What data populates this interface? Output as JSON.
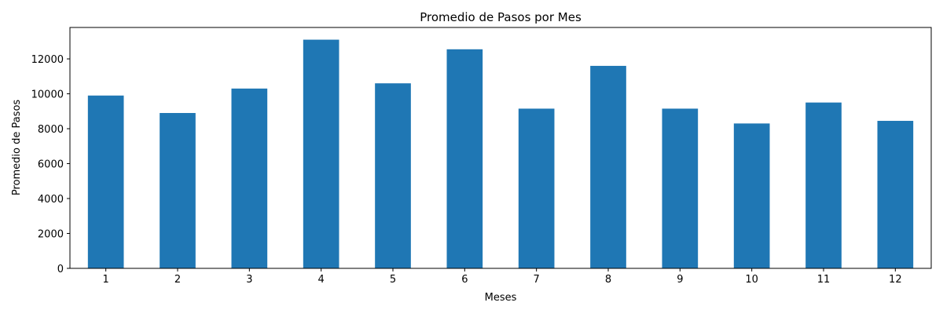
{
  "chart_data": {
    "type": "bar",
    "title": "Promedio de Pasos por Mes",
    "xlabel": "Meses",
    "ylabel": "Promedio de Pasos",
    "categories": [
      "1",
      "2",
      "3",
      "4",
      "5",
      "6",
      "7",
      "8",
      "9",
      "10",
      "11",
      "12"
    ],
    "values": [
      9900,
      8900,
      10300,
      13100,
      10600,
      12550,
      9150,
      11600,
      9150,
      8300,
      9500,
      8450
    ],
    "ylim": [
      0,
      13800
    ],
    "yticks": [
      0,
      2000,
      4000,
      6000,
      8000,
      10000,
      12000
    ],
    "bar_color": "#1f77b4",
    "grid": false,
    "legend": "none"
  }
}
